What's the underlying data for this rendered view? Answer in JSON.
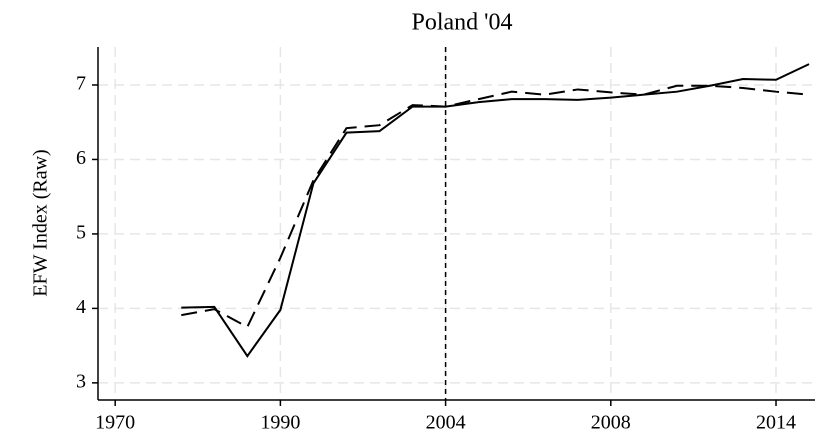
{
  "chart_data": {
    "type": "line",
    "title": "Poland '04",
    "y_label": "EFW Index (Raw)",
    "categories": [
      "1970",
      null,
      null,
      null,
      null,
      "1990",
      null,
      null,
      null,
      null,
      "2004",
      null,
      null,
      null,
      null,
      "2008",
      null,
      null,
      null,
      null,
      "2014",
      null
    ],
    "series": [
      {
        "color": "#000000",
        "dash": false,
        "values": [
          null,
          null,
          4.01,
          4.02,
          3.36,
          3.98,
          5.68,
          6.36,
          6.38,
          6.71,
          6.71,
          6.77,
          6.81,
          6.81,
          6.8,
          6.83,
          6.87,
          6.91,
          6.99,
          7.08,
          7.07,
          7.28
        ]
      },
      {
        "color": "#000000",
        "dash": true,
        "values": [
          null,
          null,
          3.91,
          3.99,
          3.75,
          4.68,
          5.72,
          6.42,
          6.46,
          6.73,
          6.71,
          6.81,
          6.91,
          6.87,
          6.94,
          6.9,
          6.87,
          6.99,
          6.99,
          6.96,
          6.91,
          6.87
        ]
      }
    ],
    "vline_category": "2004",
    "ylim": [
      2.77,
      7.51
    ],
    "yticks": [
      3,
      4,
      5,
      6,
      7
    ],
    "grid": true
  }
}
